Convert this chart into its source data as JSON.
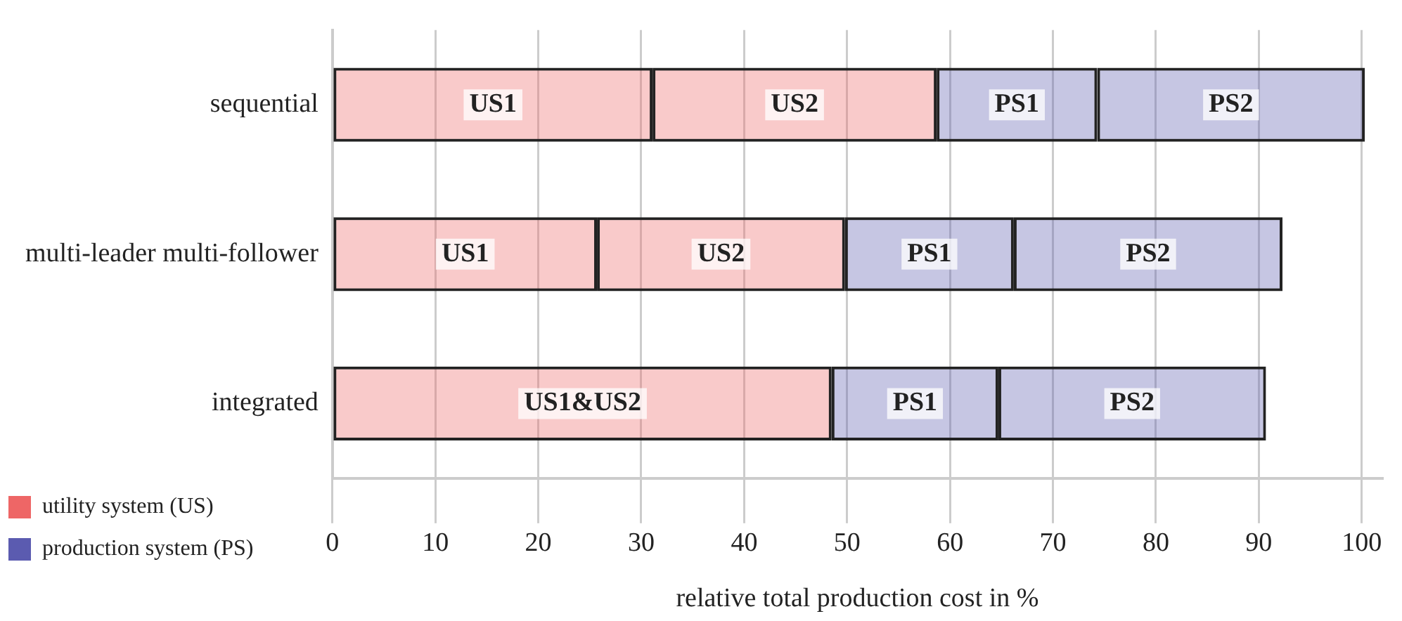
{
  "chart_data": {
    "type": "bar",
    "orientation": "horizontal",
    "stacked": true,
    "xlabel": "relative total production cost in %",
    "categories": [
      "sequential",
      "multi-leader multi-follower",
      "integrated"
    ],
    "series": [
      {
        "name": "US1",
        "color": "#ee6666",
        "values": [
          31.1,
          25.7,
          null
        ]
      },
      {
        "name": "US2",
        "color": "#ee6666",
        "values": [
          27.6,
          24.1,
          null
        ]
      },
      {
        "name": "US1&US2",
        "color": "#ee6666",
        "values": [
          null,
          null,
          48.5
        ]
      },
      {
        "name": "PS1",
        "color": "#5b5bb0",
        "values": [
          15.6,
          16.4,
          16.2
        ]
      },
      {
        "name": "PS2",
        "color": "#5b5bb0",
        "values": [
          26.0,
          26.1,
          26.0
        ]
      }
    ],
    "xlim": [
      0,
      102
    ],
    "xticks": [
      0,
      10,
      20,
      30,
      40,
      50,
      60,
      70,
      80,
      90,
      100
    ],
    "grid": "x",
    "legend": "bottom left",
    "annotations": [
      "utility system (US)",
      "production system (PS)"
    ]
  }
}
